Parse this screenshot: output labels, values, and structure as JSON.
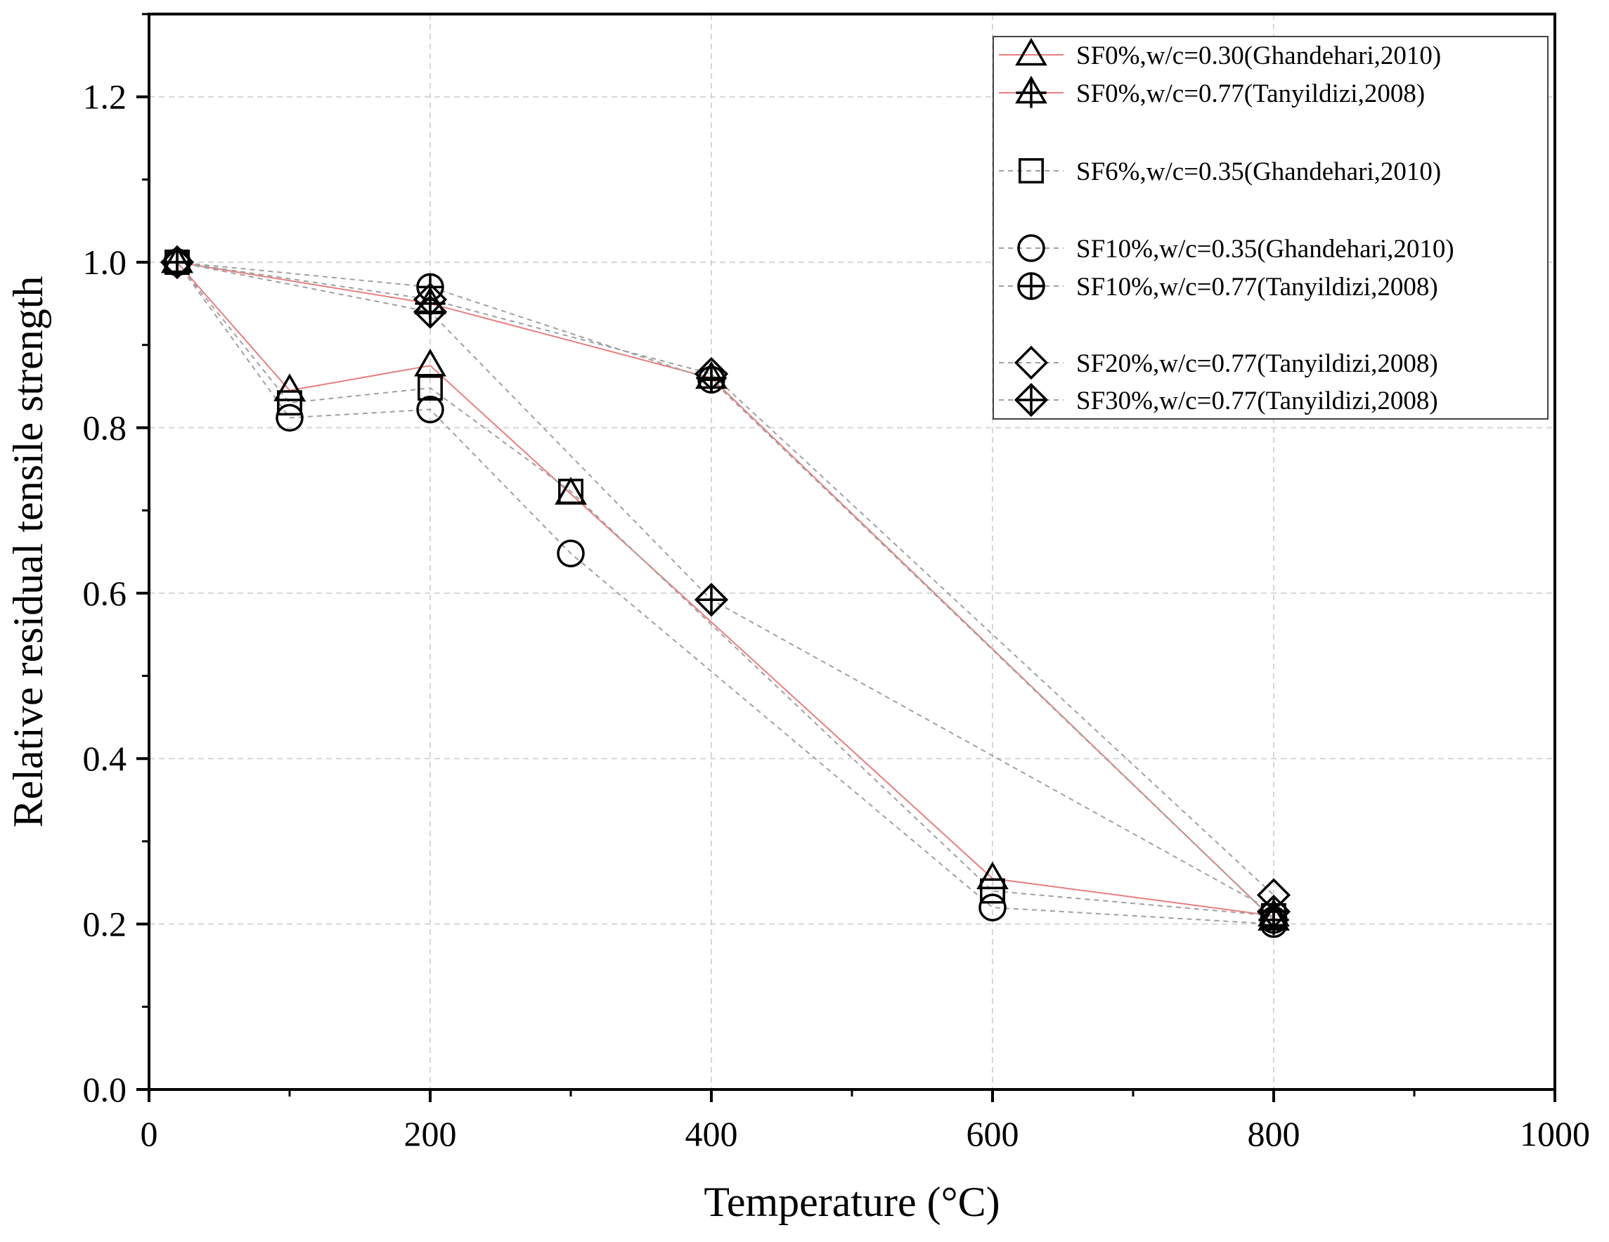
{
  "chart_data": {
    "type": "scatter",
    "title": "",
    "xlabel": "Temperature (°C)",
    "ylabel": "Relative residual tensile strength",
    "xlim": [
      0,
      1000
    ],
    "ylim": [
      0.0,
      1.3
    ],
    "x_ticks": [
      0,
      200,
      400,
      600,
      800,
      1000
    ],
    "x_tick_labels": [
      "0",
      "200",
      "400",
      "600",
      "800",
      "1000"
    ],
    "y_ticks": [
      0.0,
      0.2,
      0.4,
      0.6,
      0.8,
      1.0,
      1.2
    ],
    "y_tick_labels": [
      "0.0",
      "0.2",
      "0.4",
      "0.6",
      "0.8",
      "1.0",
      "1.2"
    ],
    "grid": true,
    "legend_position": "top-right",
    "series": [
      {
        "name": "SF0%,w/c=0.30(Ghandehari,2010)",
        "marker": "triangle",
        "line_color": "#e87f7f",
        "line_style": "solid",
        "x": [
          20,
          100,
          200,
          300,
          600,
          800
        ],
        "y": [
          1.0,
          0.845,
          0.875,
          0.72,
          0.255,
          0.21
        ]
      },
      {
        "name": "SF0%,w/c=0.77(Tanyildizi,2008)",
        "marker": "triangle-cross",
        "line_color": "#e87f7f",
        "line_style": "solid",
        "x": [
          20,
          200,
          400,
          800
        ],
        "y": [
          1.0,
          0.95,
          0.86,
          0.205
        ]
      },
      {
        "name": "SF6%,w/c=0.35(Ghandehari,2010)",
        "marker": "square",
        "line_color": "#a0a0a0",
        "line_style": "dashed",
        "x": [
          20,
          100,
          200,
          300,
          600,
          800
        ],
        "y": [
          1.0,
          0.83,
          0.848,
          0.723,
          0.24,
          0.21
        ]
      },
      {
        "name": "SF10%,w/c=0.35(Ghandehari,2010)",
        "marker": "circle",
        "line_color": "#a0a0a0",
        "line_style": "dashed",
        "x": [
          20,
          100,
          200,
          300,
          600,
          800
        ],
        "y": [
          1.0,
          0.812,
          0.822,
          0.648,
          0.22,
          0.2
        ]
      },
      {
        "name": "SF10%,w/c=0.77(Tanyildizi,2008)",
        "marker": "circle-cross",
        "line_color": "#a0a0a0",
        "line_style": "dashed",
        "x": [
          20,
          200,
          400,
          800
        ],
        "y": [
          1.0,
          0.97,
          0.858,
          0.205
        ]
      },
      {
        "name": "SF20%,w/c=0.77(Tanyildizi,2008)",
        "marker": "diamond",
        "line_color": "#a0a0a0",
        "line_style": "dashed",
        "x": [
          20,
          200,
          400,
          800
        ],
        "y": [
          1.0,
          0.955,
          0.865,
          0.235
        ]
      },
      {
        "name": "SF30%,w/c=0.77(Tanyildizi,2008)",
        "marker": "diamond-cross",
        "line_color": "#a0a0a0",
        "line_style": "dashed",
        "x": [
          20,
          200,
          400,
          800
        ],
        "y": [
          1.0,
          0.94,
          0.592,
          0.215
        ]
      }
    ]
  }
}
